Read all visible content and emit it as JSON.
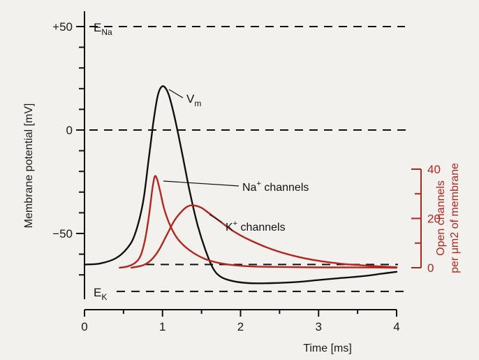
{
  "chart_data": {
    "type": "line",
    "x_label": "Time [ms]",
    "y_label": "Membrane potential [mV]",
    "y2_label_line1": "Open channels",
    "y2_label_line2": "per μm2 of membrane",
    "xlim": [
      0,
      4
    ],
    "ylim": [
      -80,
      55
    ],
    "y2lim": [
      0,
      40
    ],
    "x_ticks": [
      0,
      1,
      2,
      3,
      4
    ],
    "x_tick_labels": [
      "0",
      "1",
      "2",
      "3",
      "4"
    ],
    "y_tick_labels": [
      "+50",
      "0",
      "−50"
    ],
    "y2_tick_labels": [
      "40",
      "20",
      "0"
    ],
    "reference_lines": [
      {
        "label_main": "E",
        "label_sub": "Na",
        "value": 50
      },
      {
        "label_main": "E",
        "label_sub": "K",
        "value": -78
      },
      {
        "label_main": "",
        "label_sub": "",
        "value": 0
      },
      {
        "label_main": "",
        "label_sub": "",
        "value": -65
      }
    ],
    "series": [
      {
        "name": "Vm",
        "name_main": "V",
        "name_sub": "m",
        "axis": "left",
        "color": "#111111",
        "x": [
          0,
          0.2,
          0.4,
          0.55,
          0.65,
          0.75,
          0.82,
          0.88,
          0.93,
          0.97,
          1.02,
          1.08,
          1.15,
          1.25,
          1.35,
          1.45,
          1.55,
          1.65,
          1.75,
          1.9,
          2.1,
          2.4,
          2.7,
          3.0,
          3.3,
          3.6,
          3.8,
          4.0
        ],
        "values": [
          -65,
          -64.5,
          -62,
          -57,
          -50,
          -35,
          -15,
          3,
          15,
          20,
          21,
          17,
          7,
          -11,
          -30,
          -46,
          -58,
          -67,
          -71,
          -73,
          -74,
          -74,
          -73.5,
          -72.5,
          -71.5,
          -70.5,
          -69.5,
          -68.5
        ]
      },
      {
        "name": "Na+ channels",
        "name_main": "Na",
        "name_sup": "+",
        "name_tail": " channels",
        "axis": "right",
        "color": "#b3261e",
        "x": [
          0.45,
          0.55,
          0.65,
          0.72,
          0.78,
          0.83,
          0.87,
          0.9,
          0.93,
          0.97,
          1.02,
          1.1,
          1.2,
          1.35,
          1.55,
          1.8,
          2.1,
          2.5,
          3.0,
          3.5,
          4.0
        ],
        "values": [
          0,
          0.5,
          2,
          5,
          12,
          22,
          32,
          37,
          36,
          31,
          24,
          17,
          11.5,
          7,
          3.5,
          1.5,
          0.6,
          0.3,
          0.15,
          0.1,
          0
        ]
      },
      {
        "name": "K+ channels",
        "name_main": "K",
        "name_sup": "+",
        "name_tail": " channels",
        "axis": "right",
        "color": "#b3261e",
        "x": [
          0.6,
          0.75,
          0.85,
          0.95,
          1.05,
          1.15,
          1.25,
          1.33,
          1.4,
          1.5,
          1.6,
          1.75,
          1.9,
          2.1,
          2.4,
          2.7,
          3.0,
          3.3,
          3.6,
          3.8,
          4.0
        ],
        "values": [
          0,
          1,
          3,
          7,
          13,
          19,
          23,
          25,
          25.3,
          24.3,
          22,
          18.5,
          15,
          11.5,
          7.5,
          4.7,
          2.8,
          1.6,
          0.9,
          0.5,
          0.2
        ]
      }
    ]
  }
}
